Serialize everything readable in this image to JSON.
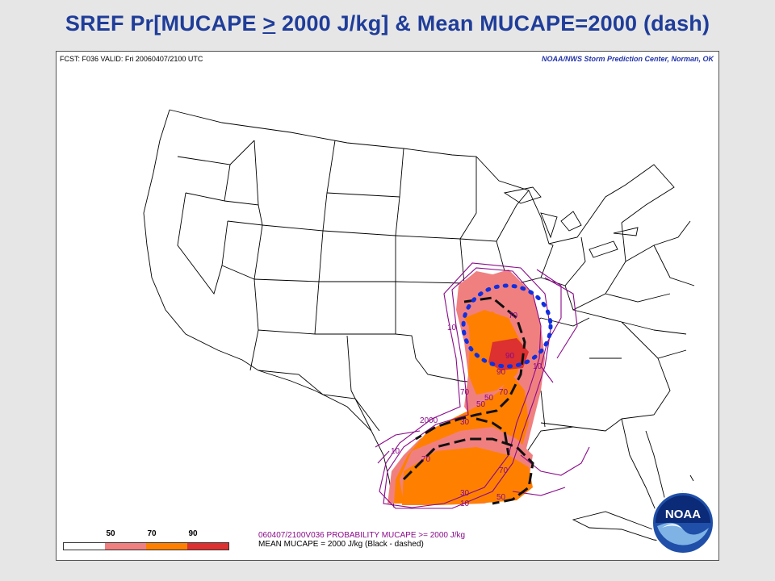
{
  "title": {
    "prefix": "SREF Pr[MUCAPE ",
    "ge": ">",
    "suffix": " 2000 J/kg] & Mean MUCAPE=2000 (dash)"
  },
  "header": {
    "fcst": "FCST: F036  VALID: Fri  20060407/2100 UTC",
    "agency": "NOAA/NWS Storm Prediction Center, Norman, OK"
  },
  "contour_labels": [
    "10",
    "50",
    "70",
    "90",
    "2000",
    "30",
    "70",
    "10",
    "70",
    "50",
    "70",
    "30",
    "10",
    "90",
    "70",
    "10",
    "50"
  ],
  "legend": {
    "labels": [
      "50",
      "70",
      "90"
    ],
    "colors": [
      "#ffffff",
      "#f08080",
      "#ff8000",
      "#dd3030"
    ]
  },
  "caption": {
    "line1": "060407/2100V036 PROBABILITY MUCAPE >= 2000 J/kg",
    "line2": "MEAN MUCAPE = 2000 J/kg (Black - dashed)"
  },
  "logo": {
    "text": "NOAA",
    "colors": {
      "ring": "#1f4fa8",
      "dark": "#0b2a77",
      "light": "#7fb3e6"
    }
  },
  "colors": {
    "title": "#1f3d99",
    "prob_low": "#f08080",
    "prob_mid": "#ff8000",
    "prob_high": "#dd3030",
    "contour": "#8a0a8a",
    "highlight": "#1030e0"
  }
}
